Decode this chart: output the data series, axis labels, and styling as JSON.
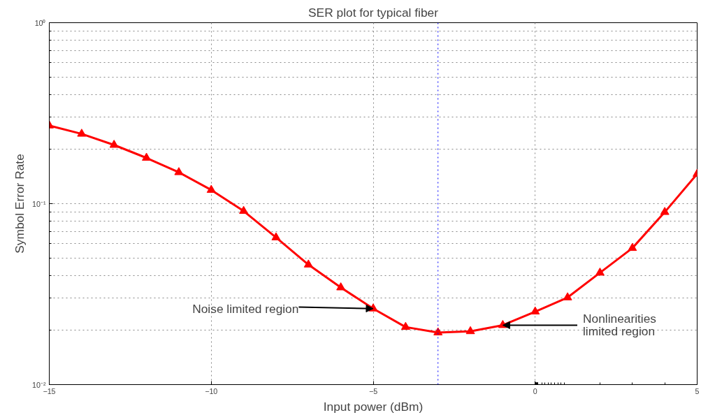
{
  "chart_data": {
    "type": "line",
    "title": "SER plot for typical fiber",
    "xlabel": "Input power (dBm)",
    "ylabel": "Symbol Error Rate",
    "x": [
      -15,
      -14,
      -13,
      -12,
      -11,
      -10,
      -9,
      -8,
      -7,
      -6,
      -5,
      -4,
      -3,
      -2,
      -1,
      0,
      1,
      2,
      3,
      4,
      5
    ],
    "series": [
      {
        "color": "#ff0000",
        "values": [
          0.27,
          0.243,
          0.211,
          0.179,
          0.149,
          0.119,
          0.091,
          0.065,
          0.046,
          0.0344,
          0.0263,
          0.0208,
          0.0194,
          0.0197,
          0.0213,
          0.0253,
          0.0303,
          0.0415,
          0.0568,
          0.0898,
          0.146
        ]
      }
    ],
    "xlim": [
      -15,
      5
    ],
    "xticks": [
      -15,
      -10,
      -5,
      0,
      5
    ],
    "ylim": [
      0.01,
      1
    ],
    "yticks": [
      {
        "value": 0.01,
        "label": "10⁻²"
      },
      {
        "value": 0.1,
        "label": "10⁻¹"
      },
      {
        "value": 1,
        "label": "10⁰"
      }
    ],
    "log": "y",
    "grid": true,
    "marker": "triangle",
    "line_style": "solid",
    "ref_lines": [
      {
        "axis": "x",
        "value": -3,
        "color": "#0000ff",
        "line_style": "dotted"
      }
    ],
    "annotations": [
      {
        "text": "Noise limited region",
        "x": -5,
        "y": 0.0263
      },
      {
        "text": "Nonlinearities\nlimited region",
        "x": -1,
        "y": 0.0213
      }
    ]
  }
}
